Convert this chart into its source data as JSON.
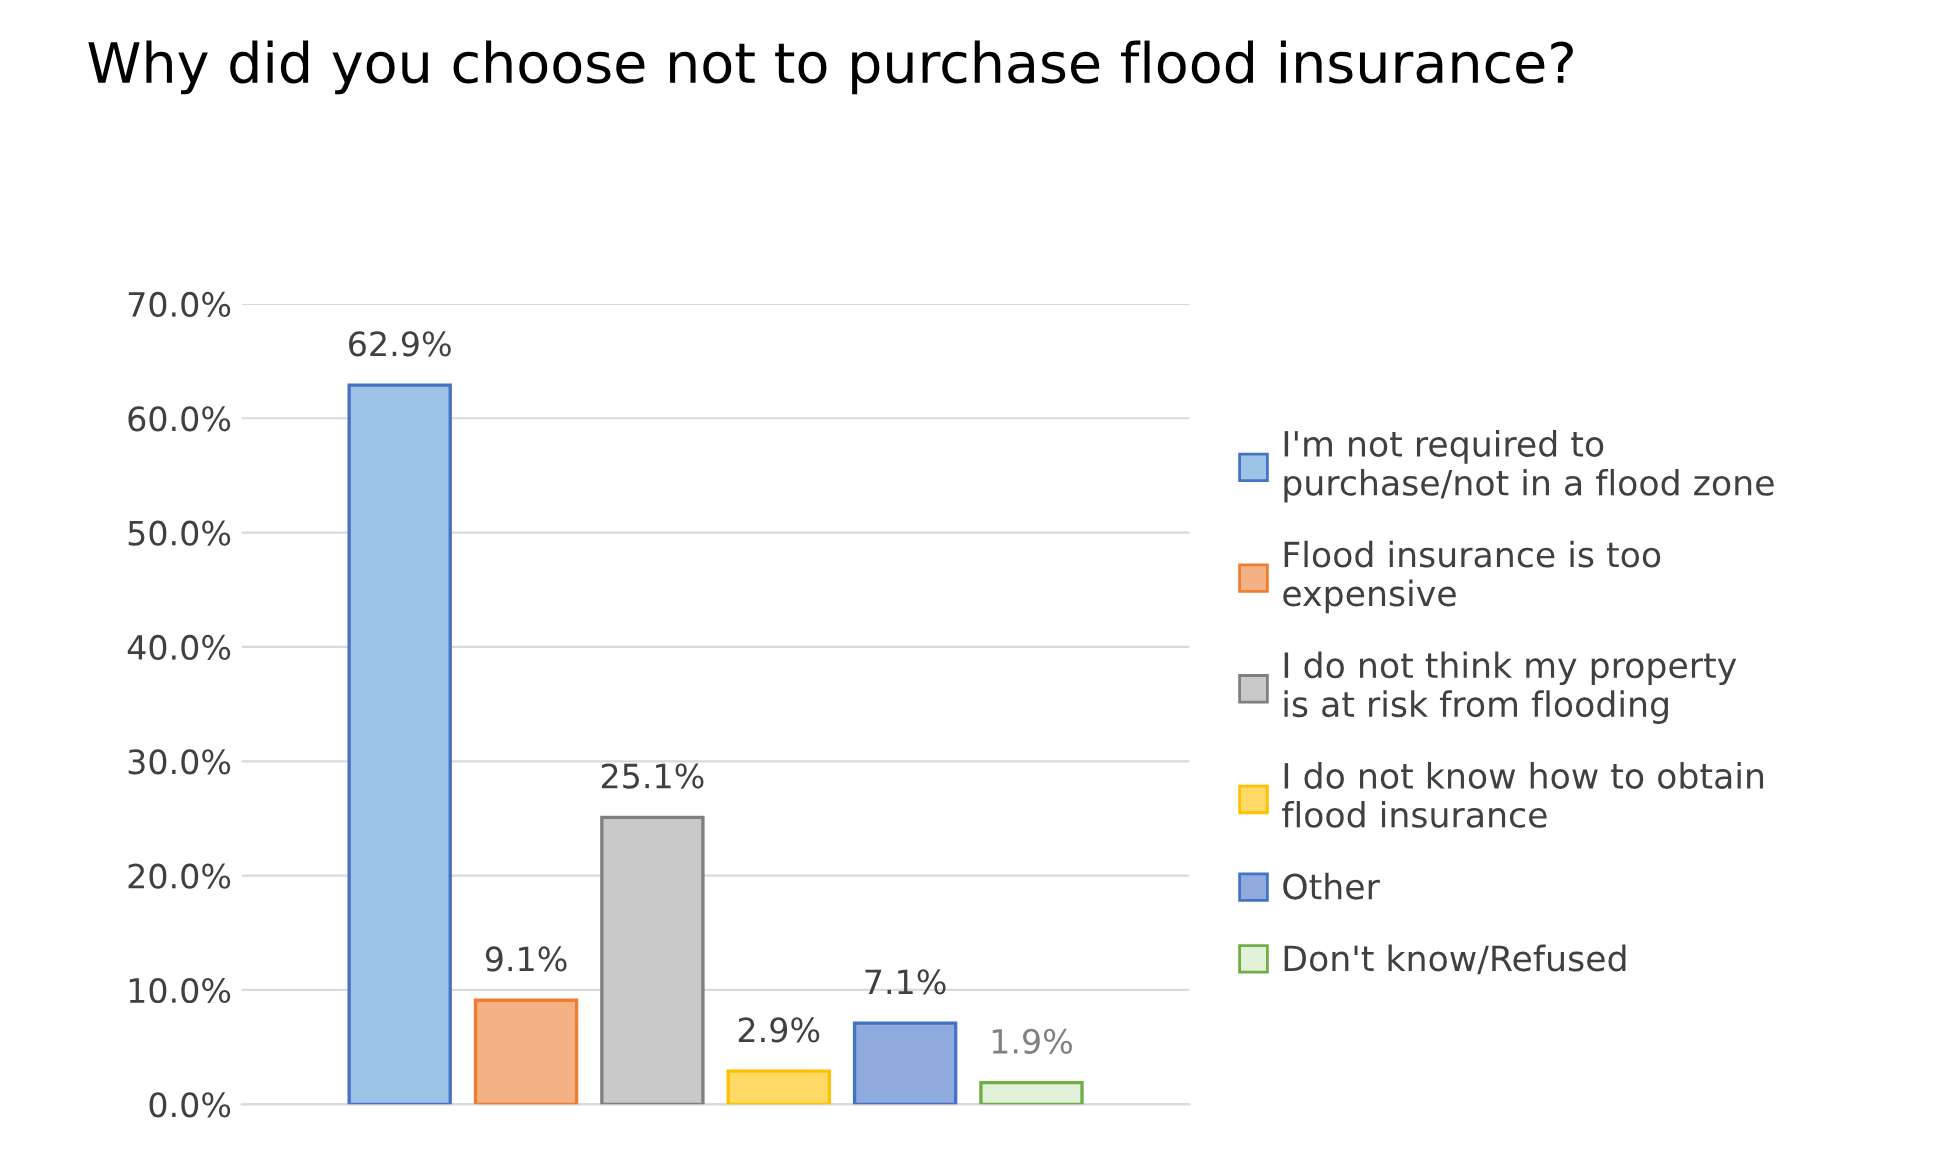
{
  "chart_data": {
    "type": "bar",
    "title": "Why did you choose not to purchase flood insurance?",
    "categories": [
      null
    ],
    "series": [
      {
        "name": "I'm not required to purchase/not in a flood zone",
        "color": "#9dc3e6",
        "values": [
          62.9
        ],
        "value_labels": [
          "62.9%"
        ]
      },
      {
        "name": "Flood insurance is too expensive",
        "color": "#f4b183",
        "values": [
          9.1
        ],
        "value_labels": [
          "9.1%"
        ]
      },
      {
        "name": "I do not think my property is at risk from flooding",
        "color": "#c9c9c9",
        "values": [
          25.1
        ],
        "value_labels": [
          "25.1%"
        ]
      },
      {
        "name": "I do not know how to obtain flood insurance",
        "color": "#ffd966",
        "values": [
          2.9
        ],
        "value_labels": [
          "2.9%"
        ]
      },
      {
        "name": "Other",
        "color": "#8faadc",
        "values": [
          7.1
        ],
        "value_labels": [
          "7.1%"
        ]
      },
      {
        "name": "Don't know/Refused",
        "color": "#e2f0d9",
        "values": [
          1.9
        ],
        "value_labels": [
          "1.9%"
        ]
      }
    ],
    "ylim": [
      0,
      70
    ],
    "yticks": [
      {
        "value": 0,
        "label": "0.0%"
      },
      {
        "value": 10,
        "label": "10.0%"
      },
      {
        "value": 20,
        "label": "20.0%"
      },
      {
        "value": 30,
        "label": "30.0%"
      },
      {
        "value": 40,
        "label": "40.0%"
      },
      {
        "value": 50,
        "label": "50.0%"
      },
      {
        "value": 60,
        "label": "60.0%"
      },
      {
        "value": 70,
        "label": "70.0%"
      }
    ],
    "grid": "y",
    "legend": "right"
  }
}
